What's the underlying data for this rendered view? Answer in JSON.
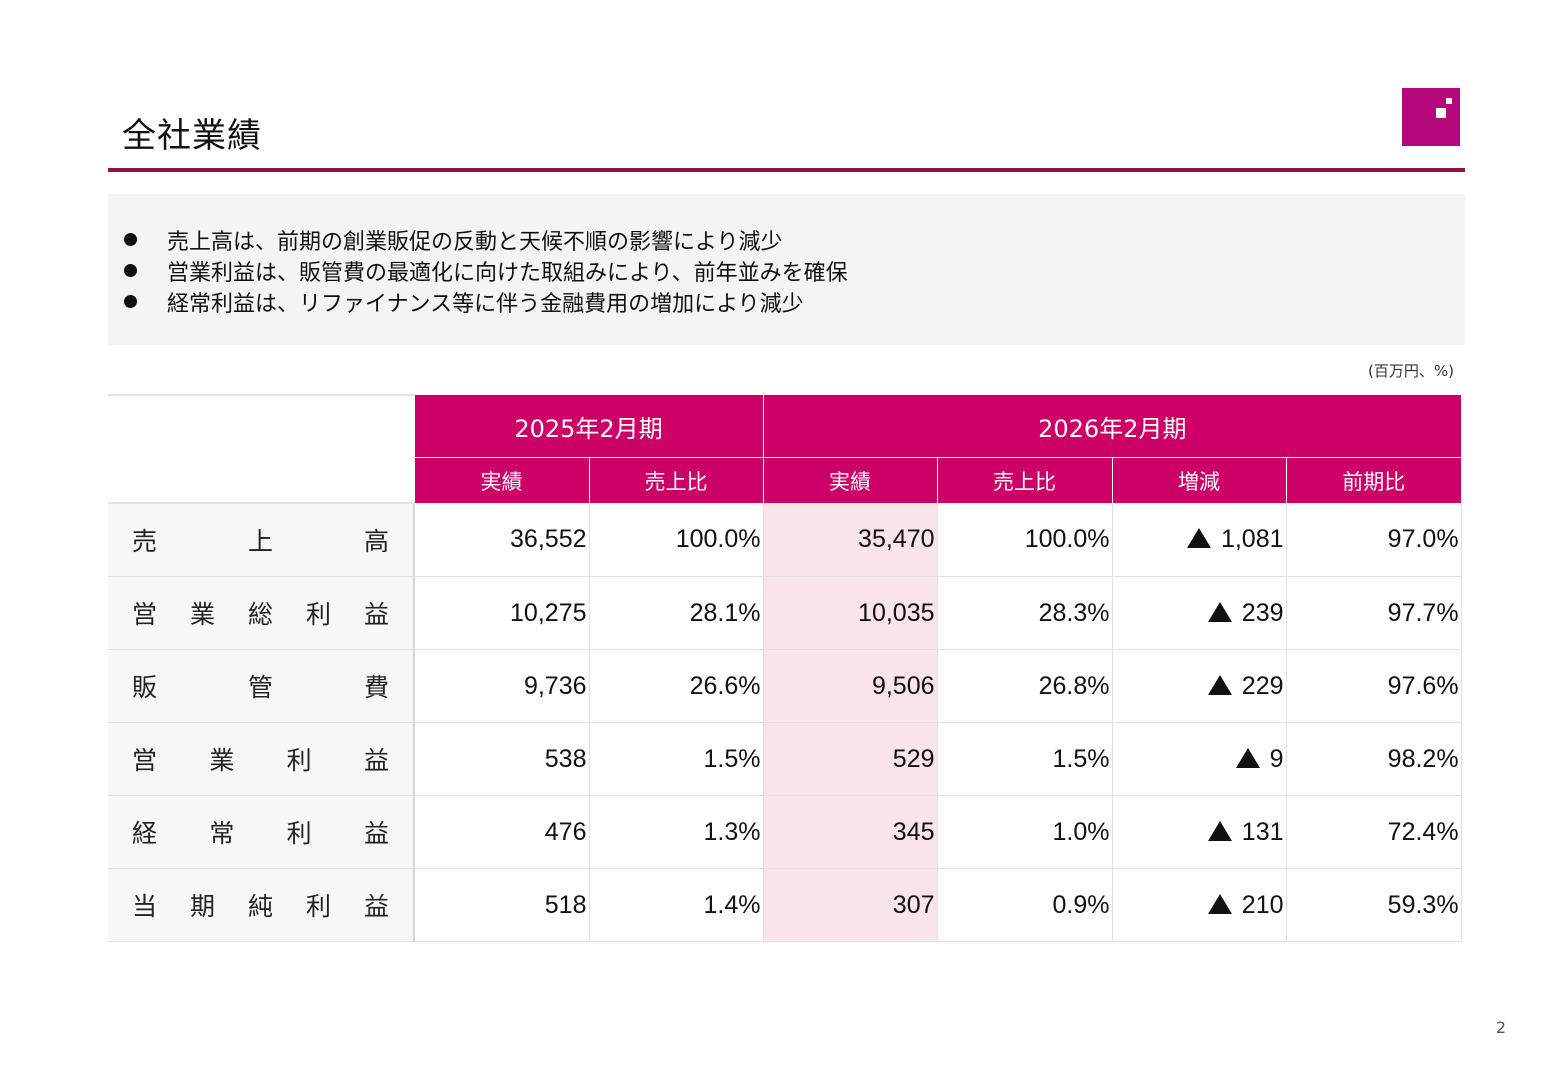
{
  "header": {
    "title": "全社業績",
    "brand_color": "#b5087a",
    "rule_color": "#8f1547"
  },
  "summary": {
    "bullets": [
      "売上高は、前期の創業販促の反動と天候不順の影響により減少",
      "営業利益は、販管費の最適化に向けた取組みにより、前年並みを確保",
      "経常利益は、リファイナンス等に伴う金融費用の増加により減少"
    ]
  },
  "unit_note": "(百万円、%)",
  "table": {
    "header_color": "#cc0066",
    "highlight_color": "#f9e4ec",
    "periods": [
      "2025年2月期",
      "2026年2月期"
    ],
    "sub_headers": [
      "実績",
      "売上比",
      "実績",
      "売上比",
      "増減",
      "前期比"
    ],
    "rows": [
      {
        "label": "売上高",
        "label_chars": [
          "売",
          "上",
          "高"
        ],
        "prev_actual": "36,552",
        "prev_ratio": "100.0%",
        "cur_actual": "35,470",
        "cur_ratio": "100.0%",
        "change": "1,081",
        "change_mark": "▲",
        "yoy": "97.0%"
      },
      {
        "label": "営業総利益",
        "label_chars": [
          "営",
          "業",
          "総",
          "利",
          "益"
        ],
        "prev_actual": "10,275",
        "prev_ratio": "28.1%",
        "cur_actual": "10,035",
        "cur_ratio": "28.3%",
        "change": "239",
        "change_mark": "▲",
        "yoy": "97.7%"
      },
      {
        "label": "販管費",
        "label_chars": [
          "販",
          "管",
          "費"
        ],
        "prev_actual": "9,736",
        "prev_ratio": "26.6%",
        "cur_actual": "9,506",
        "cur_ratio": "26.8%",
        "change": "229",
        "change_mark": "▲",
        "yoy": "97.6%"
      },
      {
        "label": "営業利益",
        "label_chars": [
          "営",
          "業",
          "利",
          "益"
        ],
        "prev_actual": "538",
        "prev_ratio": "1.5%",
        "cur_actual": "529",
        "cur_ratio": "1.5%",
        "change": "9",
        "change_mark": "▲",
        "yoy": "98.2%"
      },
      {
        "label": "経常利益",
        "label_chars": [
          "経",
          "常",
          "利",
          "益"
        ],
        "prev_actual": "476",
        "prev_ratio": "1.3%",
        "cur_actual": "345",
        "cur_ratio": "1.0%",
        "change": "131",
        "change_mark": "▲",
        "yoy": "72.4%"
      },
      {
        "label": "当期純利益",
        "label_chars": [
          "当",
          "期",
          "純",
          "利",
          "益"
        ],
        "prev_actual": "518",
        "prev_ratio": "1.4%",
        "cur_actual": "307",
        "cur_ratio": "0.9%",
        "change": "210",
        "change_mark": "▲",
        "yoy": "59.3%"
      }
    ]
  },
  "footer": {
    "page_number": "2"
  }
}
